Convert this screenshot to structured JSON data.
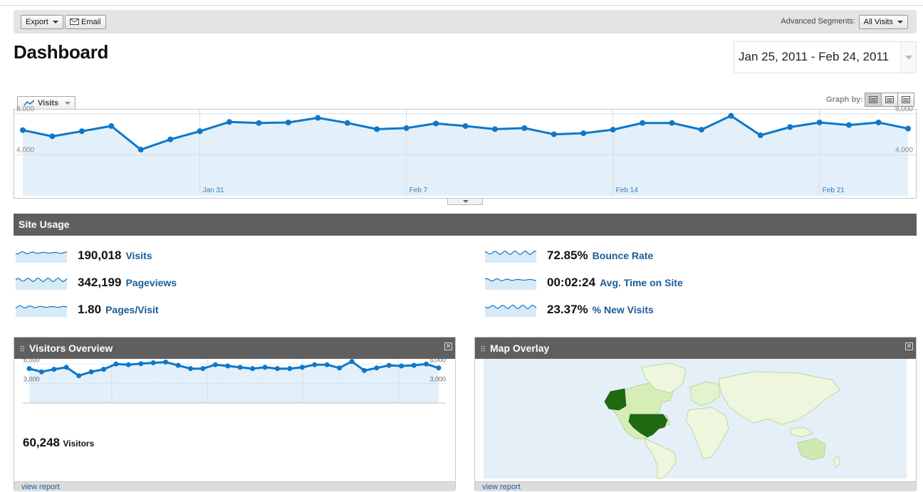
{
  "toolbar": {
    "export_label": "Export",
    "email_label": "Email",
    "segments_label": "Advanced Segments:",
    "segments_value": "All Visits"
  },
  "page_title": "Dashboard",
  "date_range": "Jan 25, 2011 - Feb 24, 2011",
  "metric_selector": "Visits",
  "graph_by_label": "Graph by:",
  "main_chart": {
    "y_ticks": [
      "8,000",
      "4,000"
    ],
    "x_labels": [
      "Jan 31",
      "Feb 7",
      "Feb 14",
      "Feb 21"
    ]
  },
  "chart_data": {
    "type": "area",
    "title": "",
    "ylim": [
      0,
      8400
    ],
    "y_ticks": [
      4000,
      8000
    ],
    "x": [
      "Jan 25",
      "Jan 26",
      "Jan 27",
      "Jan 28",
      "Jan 29",
      "Jan 30",
      "Jan 31",
      "Feb 1",
      "Feb 2",
      "Feb 3",
      "Feb 4",
      "Feb 5",
      "Feb 6",
      "Feb 7",
      "Feb 8",
      "Feb 9",
      "Feb 10",
      "Feb 11",
      "Feb 12",
      "Feb 13",
      "Feb 14",
      "Feb 15",
      "Feb 16",
      "Feb 17",
      "Feb 18",
      "Feb 19",
      "Feb 20",
      "Feb 21",
      "Feb 22",
      "Feb 23",
      "Feb 24"
    ],
    "series": [
      {
        "values": [
          6400,
          5800,
          6300,
          6800,
          4500,
          5500,
          6300,
          7200,
          7100,
          7150,
          7600,
          7100,
          6500,
          6600,
          7050,
          6800,
          6500,
          6600,
          6000,
          6100,
          6450,
          7100,
          7100,
          6450,
          7800,
          5900,
          6700,
          7150,
          6900,
          7150,
          6550
        ]
      }
    ],
    "grid": true,
    "accent": "#0e77c9",
    "fill": "#e3f0f9"
  },
  "site_usage": {
    "title": "Site Usage",
    "metrics": [
      {
        "value": "190,018",
        "label": "Visits"
      },
      {
        "value": "342,199",
        "label": "Pageviews"
      },
      {
        "value": "1.80",
        "label": "Pages/Visit"
      },
      {
        "value": "72.85%",
        "label": "Bounce Rate"
      },
      {
        "value": "00:02:24",
        "label": "Avg. Time on Site"
      },
      {
        "value": "23.37%",
        "label": "% New Visits"
      }
    ]
  },
  "visitors_overview": {
    "title": "Visitors Overview",
    "y_ticks": [
      "6,000",
      "3,000"
    ],
    "count": "60,248",
    "count_label": "Visitors",
    "footer": "view report",
    "chart_data": {
      "type": "line",
      "ylim": [
        0,
        6800
      ],
      "values": [
        5300,
        4800,
        5200,
        5500,
        4200,
        4800,
        5200,
        6000,
        5900,
        6050,
        6200,
        6300,
        5800,
        5300,
        5300,
        5900,
        5700,
        5500,
        5300,
        5500,
        5300,
        5300,
        5500,
        5900,
        5900,
        5400,
        6400,
        5000,
        5400,
        5800,
        5700,
        5800,
        6000,
        5400
      ]
    }
  },
  "map_overlay": {
    "title": "Map Overlay",
    "footer": "view report"
  }
}
